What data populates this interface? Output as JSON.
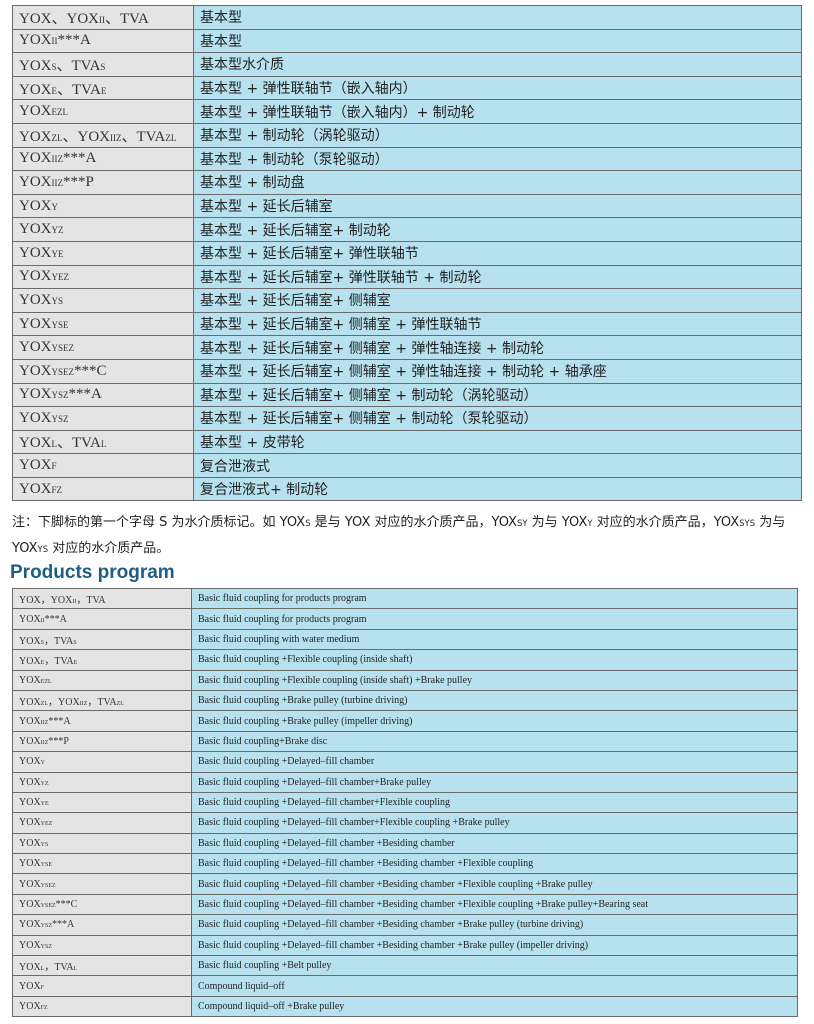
{
  "table_cn": {
    "rows": [
      {
        "code": [
          "YOX、YOX",
          {
            "sub": "II"
          },
          "、TVA"
        ],
        "desc": "基本型"
      },
      {
        "code": [
          "YOX",
          {
            "sub": "II"
          },
          "***A"
        ],
        "desc": "基本型"
      },
      {
        "code": [
          "YOX",
          {
            "sub": "S"
          },
          "、TVA",
          {
            "sub": "S"
          }
        ],
        "desc": "基本型水介质"
      },
      {
        "code": [
          "YOX",
          {
            "sub": "E"
          },
          "、TVA",
          {
            "sub": "E"
          }
        ],
        "desc": "基本型 + 弹性联轴节（嵌入轴内）"
      },
      {
        "code": [
          "YOX",
          {
            "sub": "EZL"
          }
        ],
        "desc": "基本型 + 弹性联轴节（嵌入轴内）+ 制动轮"
      },
      {
        "code": [
          "YOX",
          {
            "sub": "ZL"
          },
          "、YOX",
          {
            "sub": "IIZ"
          },
          "、TVA",
          {
            "sub": "ZL"
          }
        ],
        "desc": "基本型 + 制动轮（涡轮驱动）"
      },
      {
        "code": [
          "YOX",
          {
            "sub": "IIZ"
          },
          "***A"
        ],
        "desc": "基本型 + 制动轮（泵轮驱动）"
      },
      {
        "code": [
          "YOX",
          {
            "sub": "IIZ"
          },
          "***P"
        ],
        "desc": "基本型 + 制动盘"
      },
      {
        "code": [
          "YOX",
          {
            "sub": "Y"
          }
        ],
        "desc": "基本型 + 延长后辅室"
      },
      {
        "code": [
          "YOX",
          {
            "sub": "YZ"
          }
        ],
        "desc": "基本型 + 延长后辅室+ 制动轮"
      },
      {
        "code": [
          "YOX",
          {
            "sub": "YE"
          }
        ],
        "desc": "基本型 + 延长后辅室+ 弹性联轴节"
      },
      {
        "code": [
          "YOX",
          {
            "sub": "YEZ"
          }
        ],
        "desc": "基本型 + 延长后辅室+ 弹性联轴节 + 制动轮"
      },
      {
        "code": [
          "YOX",
          {
            "sub": "YS"
          }
        ],
        "desc": "基本型 + 延长后辅室+ 侧辅室"
      },
      {
        "code": [
          "YOX",
          {
            "sub": "YSE"
          }
        ],
        "desc": "基本型 + 延长后辅室+ 侧辅室 + 弹性联轴节"
      },
      {
        "code": [
          "YOX",
          {
            "sub": "YSEZ"
          }
        ],
        "desc": "基本型 + 延长后辅室+ 侧辅室 + 弹性轴连接 + 制动轮"
      },
      {
        "code": [
          "YOX",
          {
            "sub": "YSEZ"
          },
          "***C"
        ],
        "desc": "基本型 + 延长后辅室+ 侧辅室 + 弹性轴连接 + 制动轮 + 轴承座"
      },
      {
        "code": [
          "YOX",
          {
            "sub": "YSZ"
          },
          "***A"
        ],
        "desc": "基本型 + 延长后辅室+ 侧辅室 + 制动轮（涡轮驱动）"
      },
      {
        "code": [
          "YOX",
          {
            "sub": "YSZ"
          }
        ],
        "desc": "基本型 + 延长后辅室+ 侧辅室 + 制动轮（泵轮驱动）"
      },
      {
        "code": [
          "YOX",
          {
            "sub": "L"
          },
          "、TVA",
          {
            "sub": "L"
          }
        ],
        "desc": "基本型 + 皮带轮"
      },
      {
        "code": [
          "YOX",
          {
            "sub": "F"
          }
        ],
        "desc": "复合泄液式"
      },
      {
        "code": [
          "YOX",
          {
            "sub": "FZ"
          }
        ],
        "desc": "复合泄液式+ 制动轮"
      }
    ]
  },
  "note": [
    "注：下脚标的第一个字母 S 为水介质标记。如 YOX",
    {
      "sub": "S"
    },
    " 是与 YOX 对应的水介质产品，YOX",
    {
      "sub": "SY"
    },
    " 为与 YOX",
    {
      "sub": "Y"
    },
    " 对应的水介质产品，YOX",
    {
      "sub": "SYS"
    },
    " 为与 YOX",
    {
      "sub": "YS"
    },
    " 对应的水介质产品。"
  ],
  "heading": "Products program",
  "table_en": {
    "rows": [
      {
        "code": [
          "YOX，YOX",
          {
            "sub": "II"
          },
          "，TVA"
        ],
        "desc": "Basic fluid coupling for products program"
      },
      {
        "code": [
          "YOX",
          {
            "sub": "II"
          },
          "***A"
        ],
        "desc": "Basic fluid coupling for products program"
      },
      {
        "code": [
          "YOX",
          {
            "sub": "S"
          },
          "，TVA",
          {
            "sub": "S"
          }
        ],
        "desc": "Basic fluid coupling with water medium"
      },
      {
        "code": [
          "YOX",
          {
            "sub": "E"
          },
          "，TVA",
          {
            "sub": "E"
          }
        ],
        "desc": "Basic fluid coupling +Flexible coupling (inside shaft)"
      },
      {
        "code": [
          "YOX",
          {
            "sub": "EZL"
          }
        ],
        "desc": "Basic fluid coupling +Flexible coupling (inside shaft) +Brake pulley"
      },
      {
        "code": [
          "YOX",
          {
            "sub": "ZL"
          },
          "，YOX",
          {
            "sub": "IIZ"
          },
          "，TVA",
          {
            "sub": "ZL"
          }
        ],
        "desc": "Basic fluid coupling +Brake pulley (turbine driving)"
      },
      {
        "code": [
          "YOX",
          {
            "sub": "IIZ"
          },
          "***A"
        ],
        "desc": "Basic fluid coupling +Brake pulley (impeller driving)"
      },
      {
        "code": [
          "YOX",
          {
            "sub": "IIZ"
          },
          "***P"
        ],
        "desc": "Basic fluid coupling+Brake disc"
      },
      {
        "code": [
          "YOX",
          {
            "sub": "Y"
          }
        ],
        "desc": "Basic fluid coupling +Delayed–fill chamber"
      },
      {
        "code": [
          "YOX",
          {
            "sub": "YZ"
          }
        ],
        "desc": "Basic fluid coupling +Delayed–fill chamber+Brake pulley"
      },
      {
        "code": [
          "YOX",
          {
            "sub": "YE"
          }
        ],
        "desc": "Basic fluid coupling +Delayed–fill chamber+Flexible coupling"
      },
      {
        "code": [
          "YOX",
          {
            "sub": "YEZ"
          }
        ],
        "desc": "Basic fluid coupling +Delayed–fill chamber+Flexible coupling +Brake pulley"
      },
      {
        "code": [
          "YOX",
          {
            "sub": "YS"
          }
        ],
        "desc": "Basic fluid coupling +Delayed–fill chamber +Besiding chamber"
      },
      {
        "code": [
          "YOX",
          {
            "sub": "YSE"
          }
        ],
        "desc": "Basic fluid coupling +Delayed–fill chamber +Besiding chamber +Flexible coupling"
      },
      {
        "code": [
          "YOX",
          {
            "sub": "YSEZ"
          }
        ],
        "desc": "Basic fluid coupling +Delayed–fill chamber +Besiding chamber +Flexible coupling +Brake pulley"
      },
      {
        "code": [
          "YOX",
          {
            "sub": "YSEZ"
          },
          "***C"
        ],
        "desc": "Basic fluid coupling +Delayed–fill chamber +Besiding chamber +Flexible coupling +Brake pulley+Bearing seat"
      },
      {
        "code": [
          "YOX",
          {
            "sub": "YSZ"
          },
          "***A"
        ],
        "desc": "Basic fluid coupling +Delayed–fill chamber +Besiding chamber +Brake pulley (turbine driving)"
      },
      {
        "code": [
          "YOX",
          {
            "sub": "YSZ"
          }
        ],
        "desc": "Basic fluid coupling +Delayed–fill chamber +Besiding chamber +Brake pulley (impeller driving)"
      },
      {
        "code": [
          "YOX",
          {
            "sub": "L"
          },
          "，TVA",
          {
            "sub": "L"
          }
        ],
        "desc": "Basic fluid coupling +Belt pulley"
      },
      {
        "code": [
          "YOX",
          {
            "sub": "F"
          }
        ],
        "desc": "Compound liquid–off"
      },
      {
        "code": [
          "YOX",
          {
            "sub": "FZ"
          }
        ],
        "desc": "Compound liquid–off +Brake pulley"
      }
    ]
  }
}
